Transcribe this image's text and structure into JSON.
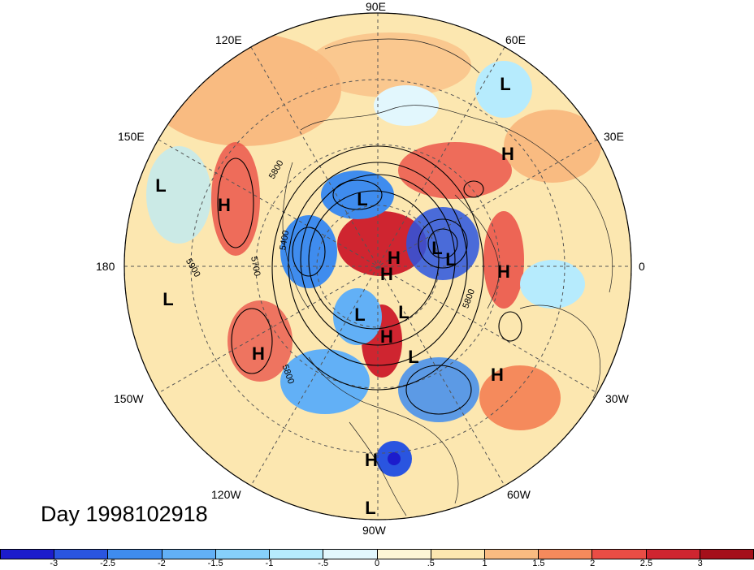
{
  "title": "Day 1998102918",
  "longitude_labels": {
    "lon_90e": "90E",
    "lon_60e": "60E",
    "lon_30e": "30E",
    "lon_0": "0",
    "lon_30w": "30W",
    "lon_60w": "60W",
    "lon_90w": "90W",
    "lon_120w": "120W",
    "lon_150w": "150W",
    "lon_180": "180",
    "lon_150e": "150E",
    "lon_120e": "120E"
  },
  "contour_labels": [
    "5800",
    "5400",
    "5700",
    "5900",
    "5800",
    "5800"
  ],
  "pressure_centers": [
    {
      "type": "L"
    },
    {
      "type": "H"
    },
    {
      "type": "L"
    },
    {
      "type": "H"
    },
    {
      "type": "H"
    },
    {
      "type": "L"
    },
    {
      "type": "H"
    },
    {
      "type": "L"
    },
    {
      "type": "H"
    },
    {
      "type": "L"
    },
    {
      "type": "L"
    },
    {
      "type": "L"
    },
    {
      "type": "H"
    },
    {
      "type": "L"
    },
    {
      "type": "H"
    },
    {
      "type": "L"
    },
    {
      "type": "H"
    },
    {
      "type": "H"
    },
    {
      "type": "L"
    }
  ],
  "colorbar": {
    "ticks": [
      "-3",
      "-2.5",
      "-2",
      "-1.5",
      "-1",
      "-.5",
      "0",
      ".5",
      "1",
      "1.5",
      "2",
      "2.5",
      "3"
    ],
    "colors": [
      "#1c1ccc",
      "#2a55e0",
      "#3f8cee",
      "#62b0f6",
      "#86d0fb",
      "#b6ebfd",
      "#e2f7fd",
      "#fdf6d6",
      "#fce7b0",
      "#f9bb81",
      "#f58a5c",
      "#ea4d45",
      "#cf2530",
      "#a50f1a"
    ]
  }
}
